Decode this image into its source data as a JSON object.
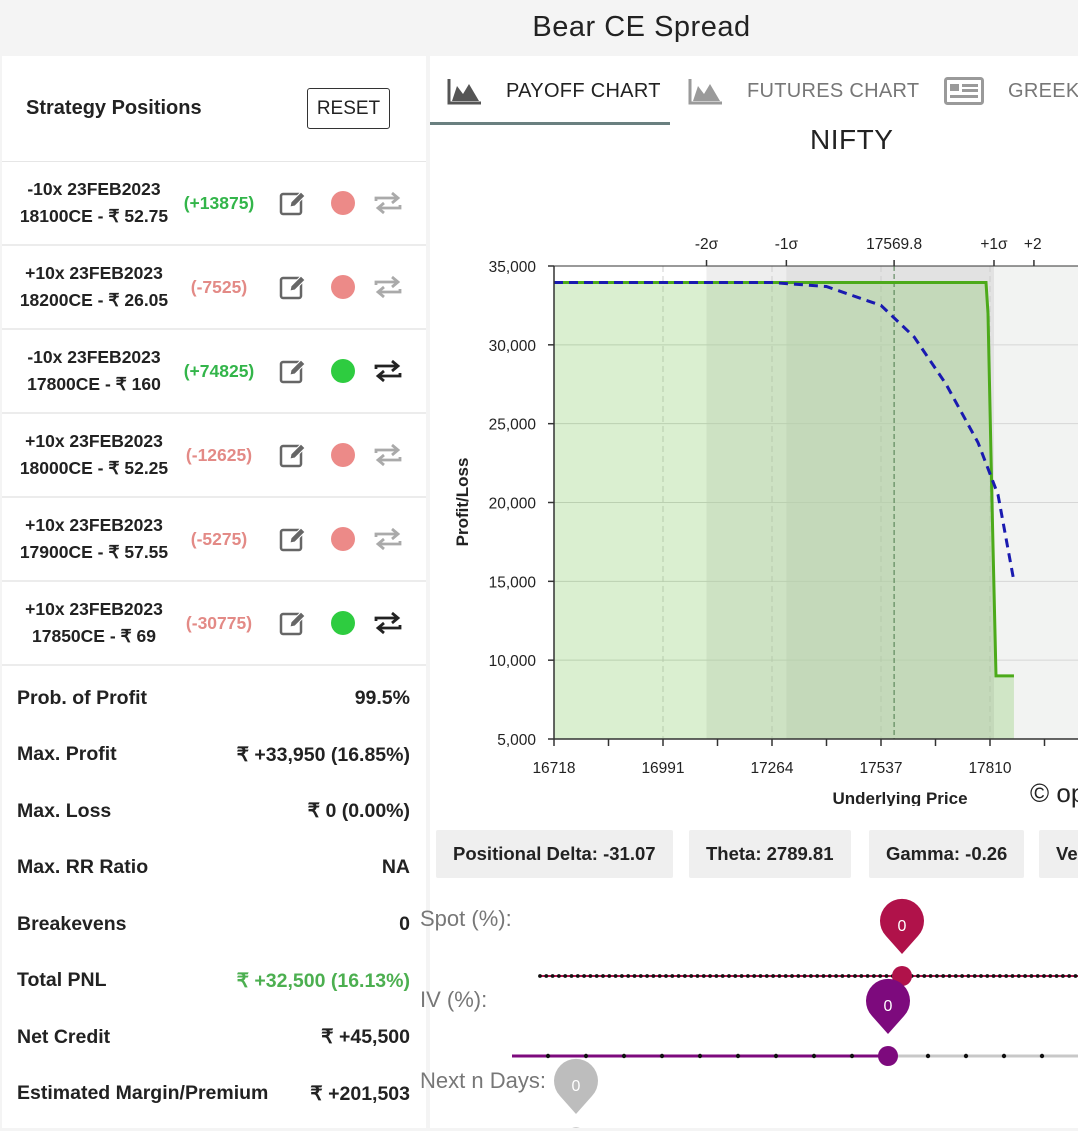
{
  "app_title": "Bear CE Spread",
  "left": {
    "title": "Strategy Positions",
    "reset_label": "RESET",
    "positions": [
      {
        "line1": "-10x  23FEB2023",
        "line2": "18100CE  - ₹ 52.75",
        "pnl": "(+13875)",
        "pnl_sign": "pos",
        "active": false
      },
      {
        "line1": "+10x  23FEB2023",
        "line2": "18200CE  - ₹ 26.05",
        "pnl": "(-7525)",
        "pnl_sign": "neg",
        "active": false
      },
      {
        "line1": "-10x  23FEB2023",
        "line2": "17800CE  - ₹ 160",
        "pnl": "(+74825)",
        "pnl_sign": "pos",
        "active": true
      },
      {
        "line1": "+10x  23FEB2023",
        "line2": "18000CE  - ₹ 52.25",
        "pnl": "(-12625)",
        "pnl_sign": "neg",
        "active": false
      },
      {
        "line1": "+10x  23FEB2023",
        "line2": "17900CE  - ₹ 57.55",
        "pnl": "(-5275)",
        "pnl_sign": "neg",
        "active": false
      },
      {
        "line1": "+10x  23FEB2023",
        "line2": "17850CE  - ₹ 69",
        "pnl": "(-30775)",
        "pnl_sign": "neg",
        "active": true
      }
    ],
    "stats": [
      {
        "label": "Prob. of Profit",
        "value": "99.5%"
      },
      {
        "label": "Max. Profit",
        "value": "₹ +33,950 (16.85%)"
      },
      {
        "label": "Max. Loss",
        "value": "₹ 0 (0.00%)"
      },
      {
        "label": "Max. RR Ratio",
        "value": "NA"
      },
      {
        "label": "Breakevens",
        "value": "0"
      },
      {
        "label": "Total PNL",
        "value": "₹ +32,500 (16.13%)",
        "color": "green"
      },
      {
        "label": "Net Credit",
        "value": "₹ +45,500"
      },
      {
        "label": "Estimated Margin/Premium",
        "value": "₹ +201,503"
      }
    ]
  },
  "tabs": [
    {
      "label": "PAYOFF CHART",
      "icon": "area-chart-icon",
      "active": true
    },
    {
      "label": "FUTURES CHART",
      "icon": "area-chart-icon",
      "active": false
    },
    {
      "label": "GREEKS",
      "icon": "table-icon",
      "active": false
    }
  ],
  "colors": {
    "profit_green": "#4caf50",
    "loss_red": "#e38a86",
    "payoff_line": "#4caa1a",
    "target_line": "#1a1ab0",
    "spot_slider": "#b0124a",
    "iv_slider": "#7d0a7d",
    "days_slider": "#bdbdbd"
  },
  "chart_data": {
    "type": "line",
    "title": "NIFTY",
    "xlabel": "Underlying Price",
    "ylabel": "Profit/Loss",
    "xlim": [
      16718,
      17870
    ],
    "ylim": [
      5000,
      35000
    ],
    "x_ticks": [
      16718,
      16991,
      17264,
      17537,
      17810
    ],
    "y_ticks": [
      5000,
      10000,
      15000,
      20000,
      25000,
      30000,
      35000
    ],
    "y_tick_labels": [
      "5,000",
      "10,000",
      "15,000",
      "20,000",
      "25,000",
      "30,000",
      "35,000"
    ],
    "sigma_labels": [
      "-2σ",
      "-1σ",
      "17569.8",
      "+1σ",
      "+2"
    ],
    "sigma_values": [
      17100,
      17300,
      17569.8,
      17820,
      17920
    ],
    "series": [
      {
        "style": "solid",
        "points": [
          [
            16718,
            33950
          ],
          [
            17800,
            33950
          ],
          [
            17805,
            32000
          ],
          [
            17815,
            20000
          ],
          [
            17825,
            9000
          ],
          [
            17870,
            9000
          ]
        ]
      },
      {
        "style": "dashed",
        "points": [
          [
            16718,
            33950
          ],
          [
            17264,
            33950
          ],
          [
            17400,
            33700
          ],
          [
            17537,
            32500
          ],
          [
            17620,
            30500
          ],
          [
            17700,
            27500
          ],
          [
            17780,
            23800
          ],
          [
            17830,
            20500
          ],
          [
            17870,
            15000
          ]
        ]
      }
    ],
    "grid": true
  },
  "copyright_text": "© op",
  "greeks": [
    {
      "label": "Positional Delta: -31.07"
    },
    {
      "label": "Theta: 2789.81"
    },
    {
      "label": "Gamma: -0.26"
    },
    {
      "label": "Ve"
    }
  ],
  "sliders": {
    "spot": {
      "label": "Spot (%):",
      "value": "0"
    },
    "iv": {
      "label": "IV (%):",
      "value": "0"
    },
    "days": {
      "label": "Next n Days:",
      "value": "0"
    }
  }
}
